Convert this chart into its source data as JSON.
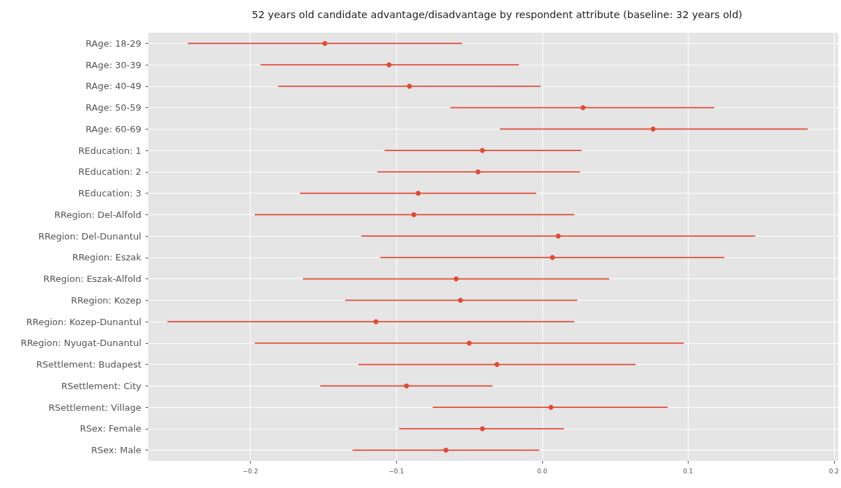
{
  "chart_data": {
    "type": "scatter",
    "title": "52 years old candidate advantage/disadvantage by respondent attribute (baseline: 32 years old)",
    "orientation": "horizontal",
    "categories": [
      "RAge: 18-29",
      "RAge: 30-39",
      "RAge: 40-49",
      "RAge: 50-59",
      "RAge: 60-69",
      "REducation: 1",
      "REducation: 2",
      "REducation: 3",
      "RRegion: Del-Alfold",
      "RRegion: Del-Dunantul",
      "RRegion: Eszak",
      "RRegion: Eszak-Alfold",
      "RRegion: Kozep",
      "RRegion: Kozep-Dunantul",
      "RRegion: Nyugat-Dunantul",
      "RSettlement: Budapest",
      "RSettlement: City",
      "RSettlement: Village",
      "RSex: Female",
      "RSex: Male"
    ],
    "values": [
      -0.149,
      -0.105,
      -0.091,
      0.028,
      0.076,
      -0.041,
      -0.044,
      -0.085,
      -0.088,
      0.011,
      0.007,
      -0.059,
      -0.056,
      -0.114,
      -0.05,
      -0.031,
      -0.093,
      0.006,
      -0.041,
      -0.066
    ],
    "errors": [
      [
        -0.243,
        -0.055
      ],
      [
        -0.193,
        -0.016
      ],
      [
        -0.181,
        -0.001
      ],
      [
        -0.063,
        0.118
      ],
      [
        -0.029,
        0.182
      ],
      [
        -0.108,
        0.027
      ],
      [
        -0.113,
        0.026
      ],
      [
        -0.166,
        -0.004
      ],
      [
        -0.197,
        0.022
      ],
      [
        -0.124,
        0.146
      ],
      [
        -0.111,
        0.125
      ],
      [
        -0.164,
        0.046
      ],
      [
        -0.135,
        0.024
      ],
      [
        -0.257,
        0.022
      ],
      [
        -0.197,
        0.097
      ],
      [
        -0.126,
        0.064
      ],
      [
        -0.152,
        -0.034
      ],
      [
        -0.075,
        0.086
      ],
      [
        -0.098,
        0.015
      ],
      [
        -0.13,
        -0.002
      ]
    ],
    "color": "#e24a33",
    "marker": "circle",
    "xlim": [
      -0.27,
      0.203
    ],
    "xticks": [
      {
        "value": -0.2,
        "label": "−0.2"
      },
      {
        "value": -0.1,
        "label": "−0.1"
      },
      {
        "value": 0,
        "label": "0.0"
      },
      0.1,
      0.2
    ],
    "grid": true
  }
}
